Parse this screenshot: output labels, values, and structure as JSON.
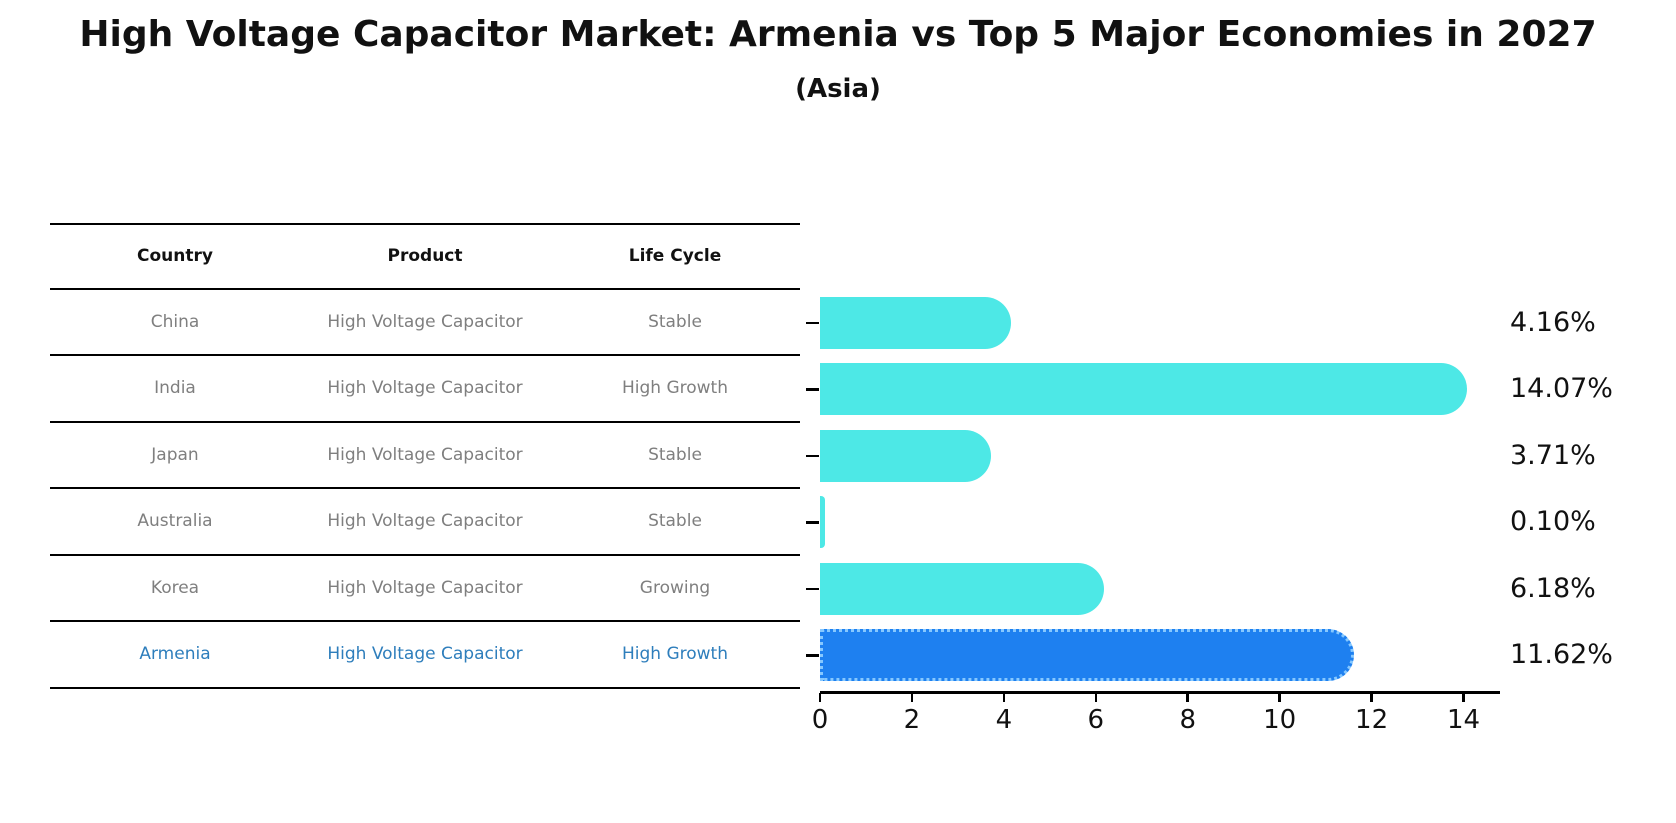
{
  "title": "High Voltage Capacitor Market: Armenia vs Top 5 Major Economies in 2027",
  "subtitle": "(Asia)",
  "table": {
    "headers": [
      "Country",
      "Product",
      "Life Cycle"
    ],
    "rows": [
      {
        "country": "China",
        "product": "High Voltage Capacitor",
        "life_cycle": "Stable",
        "highlight": false
      },
      {
        "country": "India",
        "product": "High Voltage Capacitor",
        "life_cycle": "High Growth",
        "highlight": false
      },
      {
        "country": "Japan",
        "product": "High Voltage Capacitor",
        "life_cycle": "Stable",
        "highlight": false
      },
      {
        "country": "Australia",
        "product": "High Voltage Capacitor",
        "life_cycle": "Stable",
        "highlight": false
      },
      {
        "country": "Korea",
        "product": "High Voltage Capacitor",
        "life_cycle": "Growing",
        "highlight": false
      },
      {
        "country": "Armenia",
        "product": "High Voltage Capacitor",
        "life_cycle": "High Growth",
        "highlight": true
      }
    ]
  },
  "chart_data": {
    "type": "bar",
    "orientation": "horizontal",
    "title": "High Voltage Capacitor Market: Armenia vs Top 5 Major Economies in 2027 (Asia)",
    "categories": [
      "China",
      "India",
      "Japan",
      "Australia",
      "Korea",
      "Armenia"
    ],
    "values": [
      4.16,
      14.07,
      3.71,
      0.1,
      6.18,
      11.62
    ],
    "value_labels": [
      "4.16%",
      "14.07%",
      "3.71%",
      "0.10%",
      "6.18%",
      "11.62%"
    ],
    "xlim": [
      0,
      14.75
    ],
    "xticks": [
      0,
      2,
      4,
      6,
      8,
      10,
      12,
      14
    ],
    "grid": false,
    "legend": false,
    "highlight_index": 5,
    "bar_color": "#4DE8E6",
    "highlight_color": "#1E80F0",
    "highlight_edge_color": "#86C8FF"
  },
  "colors": {
    "background": "#ffffff",
    "table_text": "#7f7f7f",
    "highlight_text": "#2E7EBC",
    "axis": "#000000"
  }
}
